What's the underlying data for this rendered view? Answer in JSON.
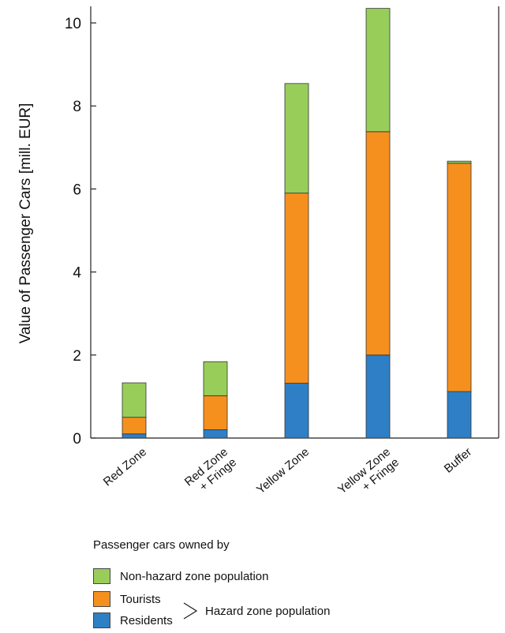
{
  "chart_data": {
    "type": "bar",
    "stacked": true,
    "categories": [
      "Red Zone",
      "Red Zone\n+ Fringe",
      "Yellow Zone",
      "Yellow Zone\n+ Fringe",
      "Buffer"
    ],
    "series": [
      {
        "name": "Residents",
        "color": "#2e7fc5",
        "values": [
          0.1,
          0.2,
          1.32,
          2.0,
          1.12
        ]
      },
      {
        "name": "Tourists",
        "color": "#f5901e",
        "values": [
          0.4,
          0.82,
          4.58,
          5.38,
          5.5
        ]
      },
      {
        "name": "Non-hazard zone population",
        "color": "#98cd5a",
        "values": [
          0.83,
          0.82,
          2.64,
          2.97,
          0.05
        ]
      }
    ],
    "ylabel": "Value of Passenger Cars [mill. EUR]",
    "xlabel": "",
    "ylim": [
      0,
      10.4
    ],
    "yticks": [
      0,
      2,
      4,
      6,
      8,
      10
    ],
    "grid": false,
    "legend": {
      "title": "Passenger cars owned by",
      "placement": "bottom",
      "group_label": "Hazard zone population"
    }
  }
}
